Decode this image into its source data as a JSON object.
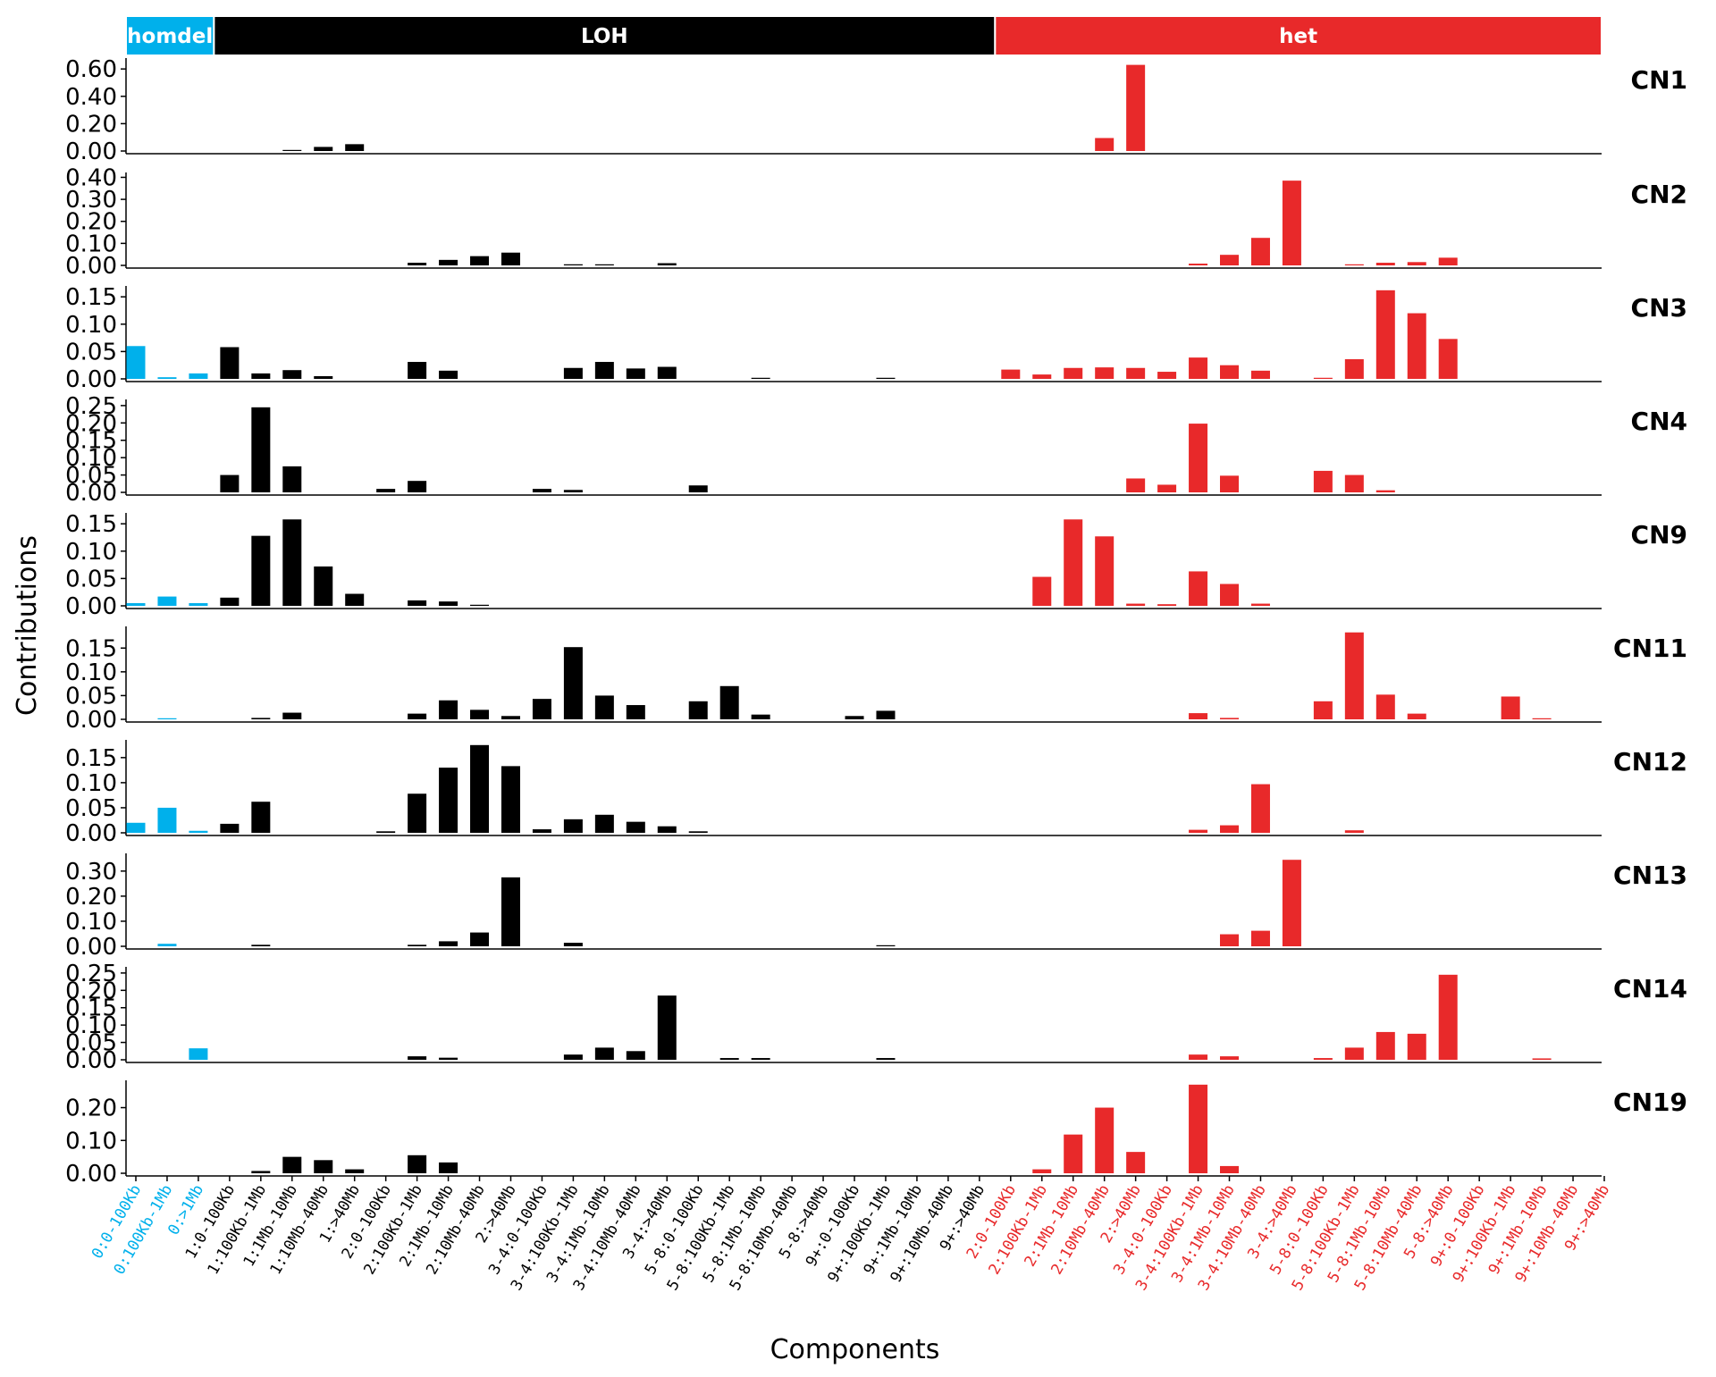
{
  "chart_data": {
    "type": "bar",
    "xlabel": "Components",
    "ylabel": "Contributions",
    "colors": {
      "homdel": "#00B0EB",
      "LOH": "#000000",
      "het": "#E8292A"
    },
    "groups": [
      {
        "name": "homdel",
        "start": 0,
        "end": 2
      },
      {
        "name": "LOH",
        "start": 3,
        "end": 27
      },
      {
        "name": "het",
        "start": 28,
        "end": 47
      }
    ],
    "categories": [
      "0:0-100Kb",
      "0:100Kb-1Mb",
      "0:>1Mb",
      "1:0-100Kb",
      "1:100Kb-1Mb",
      "1:1Mb-10Mb",
      "1:10Mb-40Mb",
      "1:>40Mb",
      "2:0-100Kb",
      "2:100Kb-1Mb",
      "2:1Mb-10Mb",
      "2:10Mb-40Mb",
      "2:>40Mb",
      "3-4:0-100Kb",
      "3-4:100Kb-1Mb",
      "3-4:1Mb-10Mb",
      "3-4:10Mb-40Mb",
      "3-4:>40Mb",
      "5-8:0-100Kb",
      "5-8:100Kb-1Mb",
      "5-8:1Mb-10Mb",
      "5-8:10Mb-40Mb",
      "5-8:>40Mb",
      "9+:0-100Kb",
      "9+:100Kb-1Mb",
      "9+:1Mb-10Mb",
      "9+:10Mb-40Mb",
      "9+:>40Mb",
      "2:0-100Kb",
      "2:100Kb-1Mb",
      "2:1Mb-10Mb",
      "2:10Mb-40Mb",
      "2:>40Mb",
      "3-4:0-100Kb",
      "3-4:100Kb-1Mb",
      "3-4:1Mb-10Mb",
      "3-4:10Mb-40Mb",
      "3-4:>40Mb",
      "5-8:0-100Kb",
      "5-8:100Kb-1Mb",
      "5-8:1Mb-10Mb",
      "5-8:10Mb-40Mb",
      "5-8:>40Mb",
      "9+:0-100Kb",
      "9+:100Kb-1Mb",
      "9+:1Mb-10Mb",
      "9+:10Mb-40Mb",
      "9+:>40Mb"
    ],
    "panels": [
      {
        "name": "CN1",
        "ylim": [
          0,
          0.66
        ],
        "ticks": [
          "0.00",
          "0.20",
          "0.40",
          "0.60"
        ],
        "values": [
          0,
          0,
          0,
          0,
          0,
          0.005,
          0.03,
          0.05,
          0,
          0,
          0,
          0,
          0,
          0,
          0,
          0,
          0,
          0,
          0,
          0,
          0,
          0,
          0,
          0,
          0,
          0,
          0,
          0,
          0,
          0,
          0,
          0.095,
          0.63,
          0,
          0,
          0,
          0,
          0,
          0,
          0,
          0,
          0,
          0,
          0,
          0,
          0,
          0,
          0
        ]
      },
      {
        "name": "CN2",
        "ylim": [
          0,
          0.41
        ],
        "ticks": [
          "0.00",
          "0.10",
          "0.20",
          "0.30",
          "0.40"
        ],
        "values": [
          0,
          0,
          0,
          0,
          0,
          0,
          0,
          0,
          0,
          0.012,
          0.025,
          0.042,
          0.058,
          0,
          0.005,
          0.004,
          0,
          0.01,
          0,
          0,
          0,
          0,
          0,
          0,
          0,
          0,
          0,
          0,
          0,
          0,
          0,
          0,
          0,
          0,
          0.008,
          0.048,
          0.125,
          0.385,
          0,
          0.003,
          0.012,
          0.015,
          0.035,
          0,
          0,
          0,
          0,
          0
        ]
      },
      {
        "name": "CN3",
        "ylim": [
          0,
          0.165
        ],
        "ticks": [
          "0.00",
          "0.05",
          "0.10",
          "0.15"
        ],
        "values": [
          0.06,
          0.003,
          0.01,
          0.058,
          0.01,
          0.016,
          0.005,
          0,
          0,
          0.031,
          0.015,
          0,
          0,
          0,
          0.02,
          0.031,
          0.019,
          0.022,
          0,
          0,
          0.002,
          0,
          0,
          0,
          0.002,
          0,
          0,
          0,
          0.017,
          0.008,
          0.02,
          0.021,
          0.02,
          0.013,
          0.039,
          0.025,
          0.015,
          0,
          0.002,
          0.036,
          0.162,
          0.12,
          0.073,
          0,
          0,
          0,
          0,
          0
        ]
      },
      {
        "name": "CN4",
        "ylim": [
          0,
          0.26
        ],
        "ticks": [
          "0.00",
          "0.05",
          "0.10",
          "0.15",
          "0.20",
          "0.25"
        ],
        "values": [
          0,
          0,
          0,
          0.05,
          0.245,
          0.075,
          0,
          0,
          0.01,
          0.033,
          0,
          0,
          0,
          0.01,
          0.007,
          0,
          0,
          0,
          0.02,
          0,
          0,
          0,
          0,
          0,
          0,
          0,
          0,
          0,
          0,
          0,
          0,
          0,
          0.04,
          0.022,
          0.198,
          0.048,
          0,
          0,
          0.062,
          0.05,
          0.006,
          0,
          0,
          0,
          0,
          0,
          0,
          0
        ]
      },
      {
        "name": "CN9",
        "ylim": [
          0,
          0.165
        ],
        "ticks": [
          "0.00",
          "0.05",
          "0.10",
          "0.15"
        ],
        "values": [
          0.005,
          0.017,
          0.005,
          0.015,
          0.128,
          0.158,
          0.072,
          0.022,
          0,
          0.01,
          0.008,
          0.002,
          0,
          0,
          0,
          0,
          0,
          0,
          0,
          0,
          0,
          0,
          0,
          0,
          0,
          0,
          0,
          0,
          0,
          0.053,
          0.158,
          0.127,
          0.004,
          0.003,
          0.063,
          0.04,
          0.004,
          0,
          0,
          0,
          0,
          0,
          0,
          0,
          0,
          0,
          0,
          0
        ]
      },
      {
        "name": "CN11",
        "ylim": [
          0,
          0.19
        ],
        "ticks": [
          "0.00",
          "0.05",
          "0.10",
          "0.15"
        ],
        "values": [
          0,
          0.002,
          0,
          0,
          0.003,
          0.014,
          0,
          0,
          0,
          0.012,
          0.04,
          0.02,
          0.007,
          0.043,
          0.152,
          0.05,
          0.03,
          0,
          0.038,
          0.07,
          0.01,
          0,
          0,
          0.007,
          0.018,
          0,
          0,
          0,
          0,
          0,
          0,
          0,
          0,
          0,
          0.013,
          0.003,
          0,
          0,
          0.038,
          0.183,
          0.052,
          0.012,
          0,
          0,
          0.048,
          0.002,
          0,
          0
        ]
      },
      {
        "name": "CN12",
        "ylim": [
          0,
          0.18
        ],
        "ticks": [
          "0.00",
          "0.05",
          "0.10",
          "0.15"
        ],
        "values": [
          0.02,
          0.05,
          0.004,
          0.018,
          0.062,
          0,
          0,
          0,
          0.003,
          0.078,
          0.13,
          0.175,
          0.133,
          0.007,
          0.027,
          0.036,
          0.022,
          0.013,
          0.003,
          0,
          0,
          0,
          0,
          0,
          0,
          0,
          0,
          0,
          0,
          0,
          0,
          0,
          0,
          0,
          0.006,
          0.015,
          0.097,
          0,
          0,
          0.005,
          0,
          0,
          0,
          0,
          0,
          0,
          0,
          0
        ]
      },
      {
        "name": "CN13",
        "ylim": [
          0,
          0.36
        ],
        "ticks": [
          "0.00",
          "0.10",
          "0.20",
          "0.30"
        ],
        "values": [
          0,
          0.01,
          0,
          0,
          0.006,
          0,
          0,
          0,
          0,
          0.006,
          0.02,
          0.055,
          0.275,
          0,
          0.014,
          0,
          0,
          0,
          0,
          0,
          0,
          0,
          0,
          0,
          0.004,
          0,
          0,
          0,
          0,
          0,
          0,
          0,
          0,
          0,
          0,
          0.048,
          0.062,
          0.345,
          0,
          0,
          0,
          0,
          0,
          0,
          0,
          0,
          0,
          0
        ]
      },
      {
        "name": "CN14",
        "ylim": [
          0,
          0.26
        ],
        "ticks": [
          "0.00",
          "0.05",
          "0.10",
          "0.15",
          "0.20",
          "0.25"
        ],
        "values": [
          0,
          0,
          0.033,
          0,
          0,
          0,
          0,
          0,
          0,
          0.01,
          0.006,
          0,
          0,
          0,
          0.015,
          0.035,
          0.025,
          0.185,
          0,
          0.005,
          0.005,
          0,
          0,
          0,
          0.005,
          0,
          0,
          0,
          0,
          0,
          0,
          0,
          0,
          0,
          0.015,
          0.01,
          0,
          0,
          0.005,
          0.035,
          0.08,
          0.075,
          0.245,
          0,
          0,
          0.004,
          0,
          0
        ]
      },
      {
        "name": "CN19",
        "ylim": [
          0,
          0.275
        ],
        "ticks": [
          "0.00",
          "0.10",
          "0.20"
        ],
        "values": [
          0,
          0,
          0,
          0,
          0.007,
          0.05,
          0.04,
          0.012,
          0,
          0.055,
          0.033,
          0,
          0,
          0,
          0,
          0,
          0,
          0,
          0,
          0,
          0,
          0,
          0,
          0,
          0,
          0,
          0,
          0,
          0,
          0.012,
          0.118,
          0.2,
          0.065,
          0,
          0.27,
          0.022,
          0,
          0,
          0,
          0,
          0,
          0,
          0,
          0,
          0,
          0,
          0,
          0
        ]
      }
    ]
  }
}
